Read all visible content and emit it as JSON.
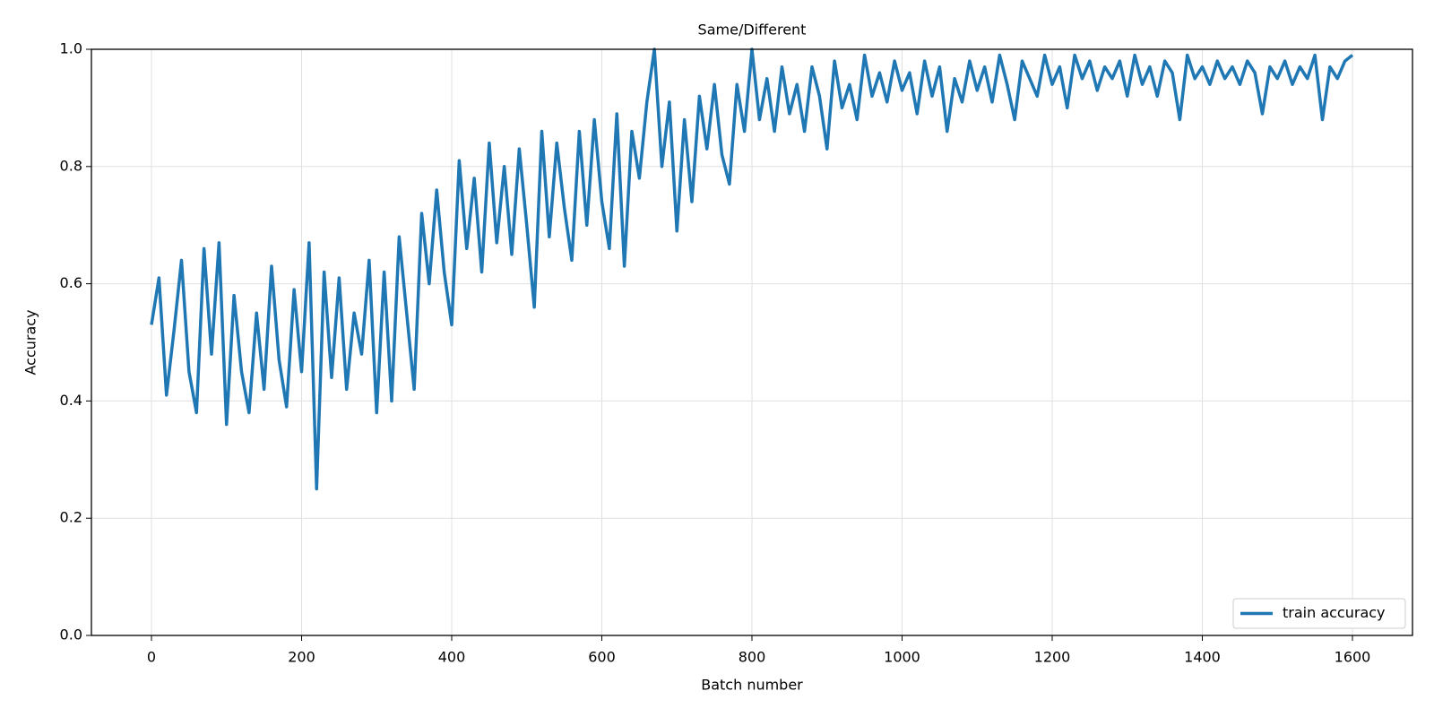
{
  "chart_data": {
    "type": "line",
    "title": "Same/Different",
    "x_label": "Batch number",
    "y_label": "Accuracy",
    "x": [
      0,
      10,
      20,
      30,
      40,
      50,
      60,
      70,
      80,
      90,
      100,
      110,
      120,
      130,
      140,
      150,
      160,
      170,
      180,
      190,
      200,
      210,
      220,
      230,
      240,
      250,
      260,
      270,
      280,
      290,
      300,
      310,
      320,
      330,
      340,
      350,
      360,
      370,
      380,
      390,
      400,
      410,
      420,
      430,
      440,
      450,
      460,
      470,
      480,
      490,
      500,
      510,
      520,
      530,
      540,
      550,
      560,
      570,
      580,
      590,
      600,
      610,
      620,
      630,
      640,
      650,
      660,
      670,
      680,
      690,
      700,
      710,
      720,
      730,
      740,
      750,
      760,
      770,
      780,
      790,
      800,
      810,
      820,
      830,
      840,
      850,
      860,
      870,
      880,
      890,
      900,
      910,
      920,
      930,
      940,
      950,
      960,
      970,
      980,
      990,
      1000,
      1010,
      1020,
      1030,
      1040,
      1050,
      1060,
      1070,
      1080,
      1090,
      1100,
      1110,
      1120,
      1130,
      1140,
      1150,
      1160,
      1170,
      1180,
      1190,
      1200,
      1210,
      1220,
      1230,
      1240,
      1250,
      1260,
      1270,
      1280,
      1290,
      1300,
      1310,
      1320,
      1330,
      1340,
      1350,
      1360,
      1370,
      1380,
      1390,
      1400,
      1410,
      1420,
      1430,
      1440,
      1450,
      1460,
      1470,
      1480,
      1490,
      1500,
      1510,
      1520,
      1530,
      1540,
      1550,
      1560,
      1570,
      1580,
      1590,
      1600
    ],
    "series": [
      {
        "name": "train accuracy",
        "color": "#1f77b4",
        "values": [
          0.53,
          0.61,
          0.41,
          0.52,
          0.64,
          0.45,
          0.38,
          0.66,
          0.48,
          0.67,
          0.36,
          0.58,
          0.45,
          0.38,
          0.55,
          0.42,
          0.63,
          0.47,
          0.39,
          0.59,
          0.45,
          0.67,
          0.25,
          0.62,
          0.44,
          0.61,
          0.42,
          0.55,
          0.48,
          0.64,
          0.38,
          0.62,
          0.4,
          0.68,
          0.55,
          0.42,
          0.72,
          0.6,
          0.76,
          0.62,
          0.53,
          0.81,
          0.66,
          0.78,
          0.62,
          0.84,
          0.67,
          0.8,
          0.65,
          0.83,
          0.7,
          0.56,
          0.86,
          0.68,
          0.84,
          0.73,
          0.64,
          0.86,
          0.7,
          0.88,
          0.74,
          0.66,
          0.89,
          0.63,
          0.86,
          0.78,
          0.91,
          1.0,
          0.8,
          0.91,
          0.69,
          0.88,
          0.74,
          0.92,
          0.83,
          0.94,
          0.82,
          0.77,
          0.94,
          0.86,
          1.0,
          0.88,
          0.95,
          0.86,
          0.97,
          0.89,
          0.94,
          0.86,
          0.97,
          0.92,
          0.83,
          0.98,
          0.9,
          0.94,
          0.88,
          0.99,
          0.92,
          0.96,
          0.91,
          0.98,
          0.93,
          0.96,
          0.89,
          0.98,
          0.92,
          0.97,
          0.86,
          0.95,
          0.91,
          0.98,
          0.93,
          0.97,
          0.91,
          0.99,
          0.94,
          0.88,
          0.98,
          0.95,
          0.92,
          0.99,
          0.94,
          0.97,
          0.9,
          0.99,
          0.95,
          0.98,
          0.93,
          0.97,
          0.95,
          0.98,
          0.92,
          0.99,
          0.94,
          0.97,
          0.92,
          0.98,
          0.96,
          0.88,
          0.99,
          0.95,
          0.97,
          0.94,
          0.98,
          0.95,
          0.97,
          0.94,
          0.98,
          0.96,
          0.89,
          0.97,
          0.95,
          0.98,
          0.94,
          0.97,
          0.95,
          0.99,
          0.88,
          0.97,
          0.95,
          0.98,
          0.99
        ]
      }
    ],
    "xlim": [
      -80,
      1680
    ],
    "xticks": [
      0,
      200,
      400,
      600,
      800,
      1000,
      1200,
      1400,
      1600
    ],
    "ylim": [
      0,
      1
    ],
    "yticks": [
      {
        "value": 0,
        "label": "0.0"
      },
      0.2,
      0.4,
      0.6,
      0.8,
      {
        "value": 1,
        "label": "1.0"
      }
    ],
    "grid": true,
    "legend": "lower right"
  }
}
